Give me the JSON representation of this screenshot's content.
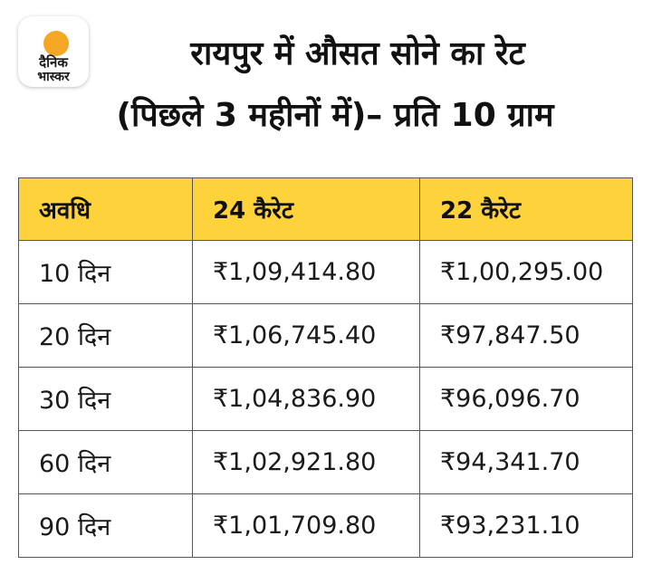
{
  "logo": {
    "icon": "dainik-bhaskar-logo",
    "line1": "दैनिक",
    "line2": "भास्कर",
    "sun_color": "#f5a623"
  },
  "title": {
    "line1": "रायपुर में औसत सोने का रेट",
    "line2": "(पिछले 3 महीनों में)– प्रति 10 ग्राम"
  },
  "table": {
    "header_color": "#fdd23a",
    "headers": [
      "अवधि",
      "24 कैरेट",
      "22 कैरेट"
    ],
    "rows": [
      [
        "10 दिन",
        "₹1,09,414.80",
        "₹1,00,295.00"
      ],
      [
        "20 दिन",
        "₹1,06,745.40",
        "₹97,847.50"
      ],
      [
        "30 दिन",
        "₹1,04,836.90",
        "₹96,096.70"
      ],
      [
        "60 दिन",
        "₹1,02,921.80",
        "₹94,341.70"
      ],
      [
        "90 दिन",
        "₹1,01,709.80",
        "₹93,231.10"
      ]
    ]
  }
}
